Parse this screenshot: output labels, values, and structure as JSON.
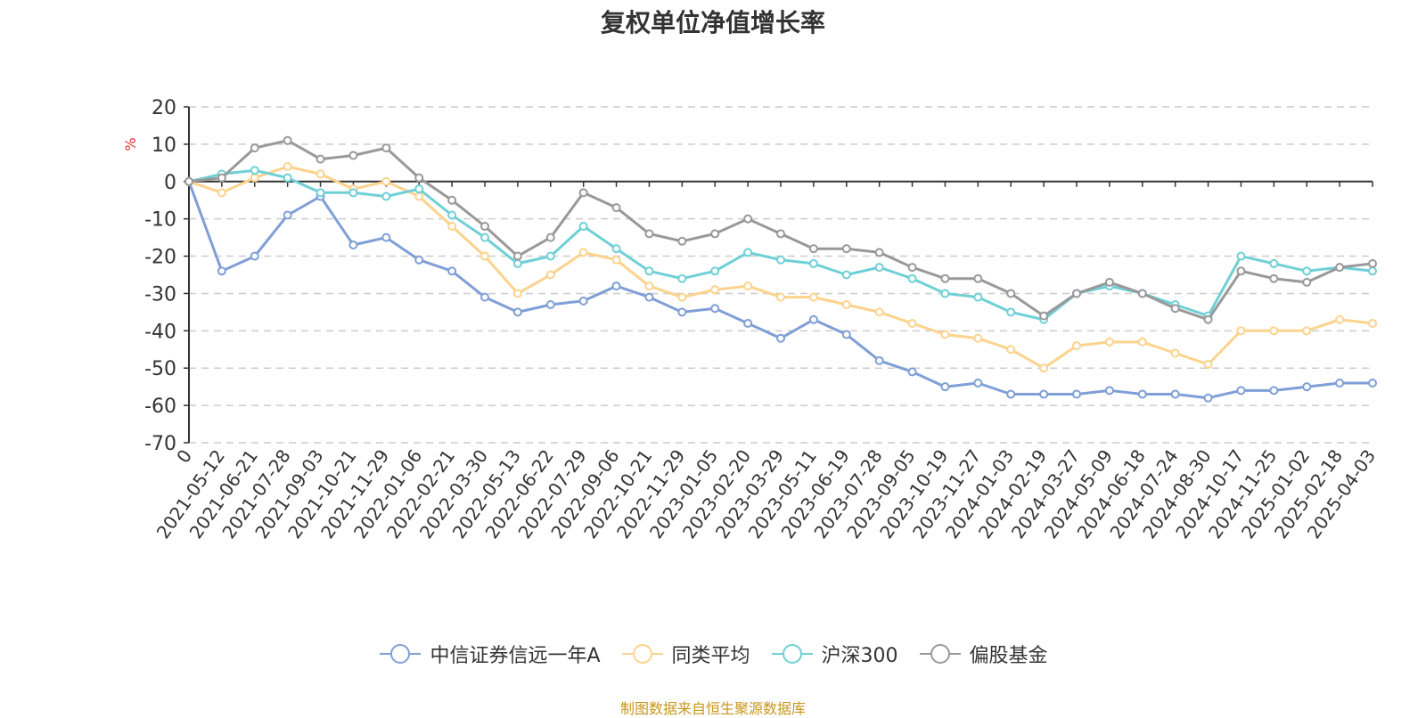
{
  "chart_data": {
    "type": "line",
    "title": "复权单位净值增长率",
    "ylabel": "%",
    "ylim": [
      -70,
      20
    ],
    "yticks": [
      20,
      10,
      0,
      -10,
      -20,
      -30,
      -40,
      -50,
      -60,
      -70
    ],
    "grid": true,
    "legend_position": "bottom",
    "x_tick_labels": [
      "0",
      "2021-05-12",
      "2021-06-21",
      "2021-07-28",
      "2021-09-03",
      "2021-10-21",
      "2021-11-29",
      "2022-01-06",
      "2022-02-21",
      "2022-03-30",
      "2022-05-13",
      "2022-06-22",
      "2022-07-29",
      "2022-09-06",
      "2022-10-21",
      "2022-11-29",
      "2023-01-05",
      "2023-02-20",
      "2023-03-29",
      "2023-05-11",
      "2023-06-19",
      "2023-07-28",
      "2023-09-05",
      "2023-10-19",
      "2023-11-27",
      "2024-01-03",
      "2024-02-19",
      "2024-03-27",
      "2024-05-09",
      "2024-06-18",
      "2024-07-24",
      "2024-08-30",
      "2024-10-17",
      "2024-11-25",
      "2025-01-02",
      "2025-02-18",
      "2025-04-03"
    ],
    "series": [
      {
        "name": "中信证券信远一年A",
        "color": "#7f9fd6",
        "values": [
          0,
          -24,
          -20,
          -9,
          -4,
          -17,
          -15,
          -21,
          -24,
          -31,
          -35,
          -33,
          -32,
          -28,
          -31,
          -35,
          -34,
          -38,
          -42,
          -37,
          -41,
          -48,
          -51,
          -55,
          -54,
          -57,
          -57,
          -57,
          -56,
          -57,
          -57,
          -58,
          -56,
          -56,
          -55,
          -54,
          -54
        ]
      },
      {
        "name": "同类平均",
        "color": "#fcd38d",
        "values": [
          0,
          -3,
          1,
          4,
          2,
          -2,
          0,
          -4,
          -12,
          -20,
          -30,
          -25,
          -19,
          -21,
          -28,
          -31,
          -29,
          -28,
          -31,
          -31,
          -33,
          -35,
          -38,
          -41,
          -42,
          -45,
          -50,
          -44,
          -43,
          -43,
          -46,
          -49,
          -40,
          -40,
          -40,
          -37,
          -38
        ]
      },
      {
        "name": "沪深300",
        "color": "#6fd0d6",
        "values": [
          0,
          2,
          3,
          1,
          -3,
          -3,
          -4,
          -2,
          -9,
          -15,
          -22,
          -20,
          -12,
          -18,
          -24,
          -26,
          -24,
          -19,
          -21,
          -22,
          -25,
          -23,
          -26,
          -30,
          -31,
          -35,
          -37,
          -30,
          -28,
          -30,
          -33,
          -36,
          -20,
          -22,
          -24,
          -23,
          -24
        ]
      },
      {
        "name": "偏股基金",
        "color": "#999999",
        "values": [
          0,
          1,
          9,
          11,
          6,
          7,
          9,
          1,
          -5,
          -12,
          -20,
          -15,
          -3,
          -7,
          -14,
          -16,
          -14,
          -10,
          -14,
          -18,
          -18,
          -19,
          -23,
          -26,
          -26,
          -30,
          -36,
          -30,
          -27,
          -30,
          -34,
          -37,
          -24,
          -26,
          -27,
          -23,
          -22
        ]
      }
    ]
  },
  "source_note": "制图数据来自恒生聚源数据库"
}
